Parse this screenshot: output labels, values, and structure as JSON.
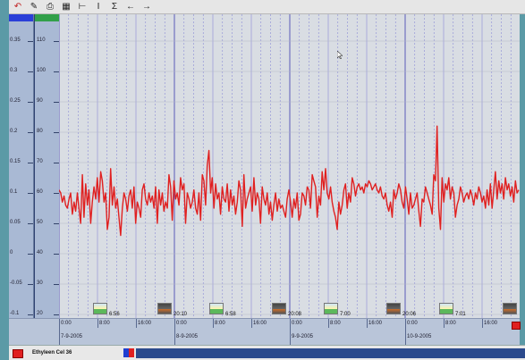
{
  "colors": {
    "page_background": "#5b9aa6",
    "plot_background": "#d9dde3",
    "grid_minor": "#8c8cd6",
    "grid_major": "#5a5ab8",
    "series_line": "#e02020",
    "left_axis_header": "#2a3fd8",
    "right_axis_header": "#32a04a"
  },
  "toolbar": {
    "icons": [
      "undo-icon",
      "pencil-icon",
      "print-icon",
      "grid-icon",
      "measure-icon",
      "vertical-cursor-icon",
      "sigma-icon",
      "arrow-left-icon",
      "arrow-right-icon"
    ],
    "glyphs": [
      "↶",
      "✎",
      "⎙",
      "▦",
      "⊢",
      "I",
      "Σ",
      "←",
      "→"
    ]
  },
  "axes": {
    "left_ticks": [
      "0.35",
      "0.3",
      "0.25",
      "0.2",
      "0.15",
      "0.1",
      "0.05",
      "0",
      "-0.05",
      "-0.1"
    ],
    "right_ticks": [
      "110",
      "100",
      "90",
      "80",
      "70",
      "60",
      "50",
      "40",
      "30",
      "20"
    ]
  },
  "timeline": {
    "labels": [
      {
        "time": "0:00",
        "date": "7-9-2005"
      },
      {
        "time": "8:00",
        "date": ""
      },
      {
        "time": "16:00",
        "date": ""
      },
      {
        "time": "0:00",
        "date": "8-9-2005"
      },
      {
        "time": "8:00",
        "date": ""
      },
      {
        "time": "16:00",
        "date": ""
      },
      {
        "time": "0:00",
        "date": "9-9-2005"
      },
      {
        "time": "8:00",
        "date": ""
      },
      {
        "time": "16:00",
        "date": ""
      },
      {
        "time": "0:00",
        "date": "10-9-2005"
      },
      {
        "time": "8:00",
        "date": ""
      },
      {
        "time": "16:00",
        "date": ""
      }
    ],
    "sun_events": [
      {
        "kind": "sunrise",
        "time": "6:56"
      },
      {
        "kind": "sunset",
        "time": "20:10"
      },
      {
        "kind": "sunrise",
        "time": "6:58"
      },
      {
        "kind": "sunset",
        "time": "20:08"
      },
      {
        "kind": "sunrise",
        "time": "7:00"
      },
      {
        "kind": "sunset",
        "time": "20:06"
      },
      {
        "kind": "sunrise",
        "time": "7:01"
      },
      {
        "kind": "sunset",
        "time": ""
      }
    ]
  },
  "legend": {
    "series_label": "Ethyleen Cel 36"
  },
  "chart_data": {
    "type": "line",
    "ylim": [
      20,
      120
    ],
    "series": [
      {
        "name": "Ethyleen Cel 36",
        "values": [
          61,
          60,
          57,
          59,
          56,
          55,
          58,
          60,
          53,
          57,
          54,
          60,
          55,
          50,
          66,
          52,
          63,
          56,
          61,
          50,
          57,
          62,
          58,
          65,
          57,
          67,
          64,
          57,
          60,
          48,
          52,
          68,
          56,
          62,
          55,
          58,
          52,
          46,
          55,
          60,
          58,
          54,
          59,
          61,
          55,
          62,
          50,
          57,
          55,
          52,
          61,
          63,
          58,
          56,
          60,
          57,
          59,
          55,
          62,
          50,
          61,
          56,
          60,
          54,
          57,
          55,
          66,
          62,
          51,
          64,
          58,
          60,
          56,
          65,
          61,
          63,
          50,
          60,
          58,
          55,
          57,
          61,
          55,
          53,
          60,
          51,
          66,
          64,
          56,
          69,
          74,
          60,
          65,
          55,
          63,
          58,
          60,
          53,
          62,
          58,
          57,
          63,
          54,
          61,
          56,
          59,
          53,
          57,
          64,
          61,
          49,
          66,
          55,
          58,
          60,
          62,
          54,
          65,
          56,
          60,
          58,
          50,
          62,
          58,
          56,
          60,
          53,
          57,
          51,
          56,
          60,
          54,
          58,
          55,
          56,
          54,
          52,
          58,
          61,
          57,
          52,
          58,
          55,
          60,
          51,
          53,
          60,
          59,
          56,
          62,
          61,
          55,
          66,
          64,
          62,
          52,
          59,
          56,
          67,
          61,
          68,
          60,
          58,
          62,
          57,
          54,
          52,
          48,
          57,
          53,
          56,
          61,
          63,
          55,
          60,
          57,
          65,
          63,
          59,
          62,
          63,
          61,
          62,
          60,
          63,
          62,
          64,
          63,
          61,
          62,
          63,
          61,
          60,
          62,
          59,
          58,
          60,
          56,
          54,
          57,
          52,
          61,
          58,
          60,
          63,
          61,
          57,
          55,
          62,
          58,
          53,
          60,
          55,
          56,
          58,
          60,
          54,
          49,
          58,
          57,
          62,
          60,
          58,
          56,
          53,
          66,
          64,
          82,
          55,
          48,
          65,
          57,
          63,
          61,
          65,
          58,
          62,
          60,
          52,
          56,
          58,
          62,
          60,
          57,
          59,
          60,
          58,
          61,
          59,
          56,
          60,
          58,
          62,
          60,
          57,
          59,
          55,
          61,
          56,
          63,
          55,
          61,
          67,
          58,
          64,
          60,
          63,
          58,
          65,
          61,
          63,
          59,
          62,
          57,
          64,
          60,
          61
        ]
      }
    ]
  }
}
